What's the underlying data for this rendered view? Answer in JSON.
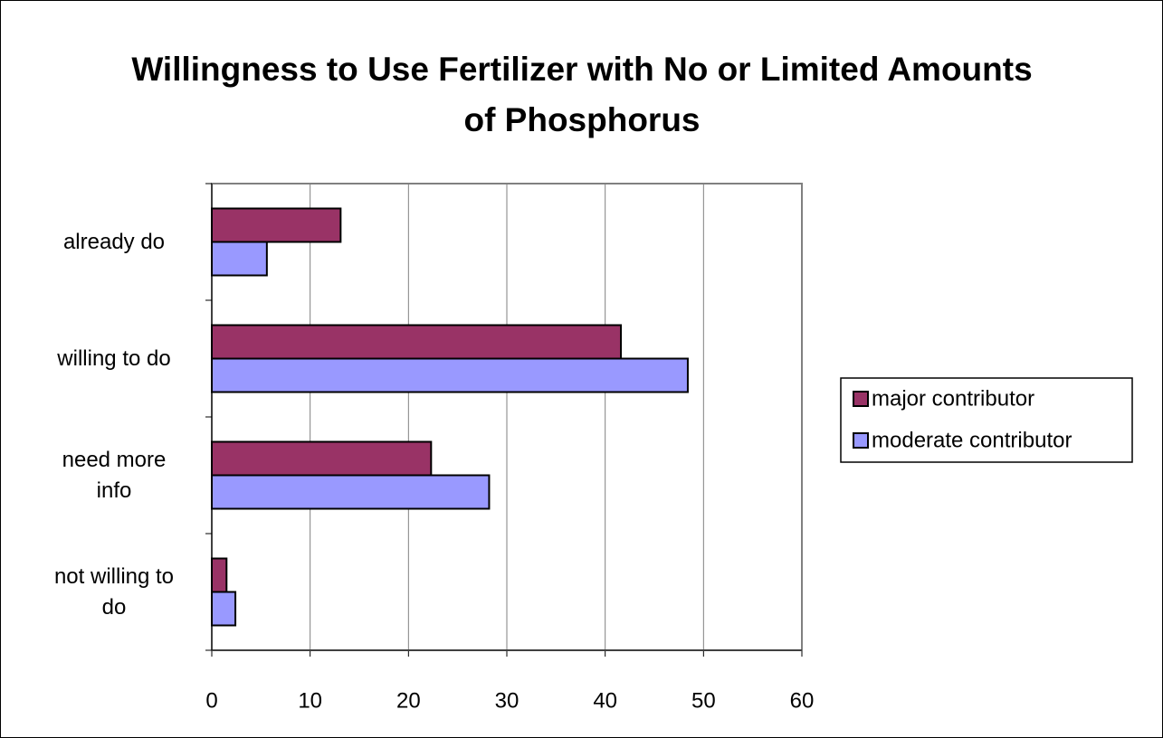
{
  "chart_data": {
    "type": "bar",
    "orientation": "horizontal",
    "title": "Willingness to Use Fertilizer with No or Limited Amounts of Phosphorus",
    "categories": [
      "already do",
      "willing to do",
      "need more\ninfo",
      "not willing to\ndo"
    ],
    "series": [
      {
        "name": "major contributor",
        "color": "#993366",
        "values": [
          13.1,
          41.6,
          22.3,
          1.5
        ]
      },
      {
        "name": "moderate contributor",
        "color": "#9999ff",
        "values": [
          5.6,
          48.4,
          28.2,
          2.4
        ]
      }
    ],
    "xlim": [
      0,
      60
    ],
    "xticks": [
      0,
      10,
      20,
      30,
      40,
      50,
      60
    ],
    "grid": true,
    "legend": "right"
  }
}
